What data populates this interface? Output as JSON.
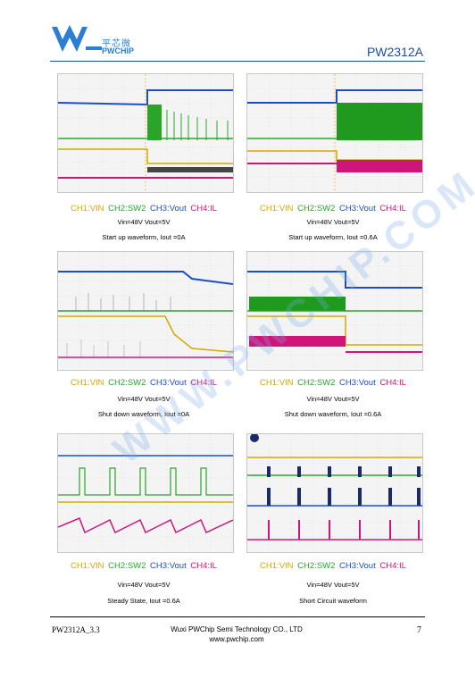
{
  "header": {
    "brand_cn": "平芯微",
    "brand_en": "PWCHIP",
    "doc_title": "PW2312A"
  },
  "watermark": "WWW.PWCHIP.COM",
  "legend": {
    "ch1": "CH1:VIN",
    "ch2": "CH2:SW2",
    "ch3": "CH3:Vout",
    "ch4": "CH4:IL"
  },
  "figures": [
    {
      "cond": "Vin=48V Vout=5V",
      "caption": "Start up waveform, Iout =0A"
    },
    {
      "cond": "Vin=48V Vout=5V",
      "caption": "Start up waveform, Iout =0.6A"
    },
    {
      "cond": "Vin=48V Vout=5V",
      "caption": "Shut down waveform, Iout =0A"
    },
    {
      "cond": "Vin=48V Vout=5V",
      "caption": "Shut down waveform, Iout =0.6A"
    },
    {
      "cond": "Vin=48V Vout=5V",
      "caption": "Steady State, Iout =0.6A"
    },
    {
      "cond": "Vin=48V Vout=5V",
      "caption": "Short Circuit waveform"
    }
  ],
  "footer": {
    "left": "PW2312A_3.3",
    "company": "Wuxi PWChip Semi Technology CO., LTD",
    "url": "www.pwchip.com",
    "page": "7"
  },
  "colors": {
    "vin": "#d4a800",
    "sw2": "#2aa52a",
    "vout": "#1a4fc4",
    "il": "#d0147a",
    "brand": "#2a7fd4"
  }
}
